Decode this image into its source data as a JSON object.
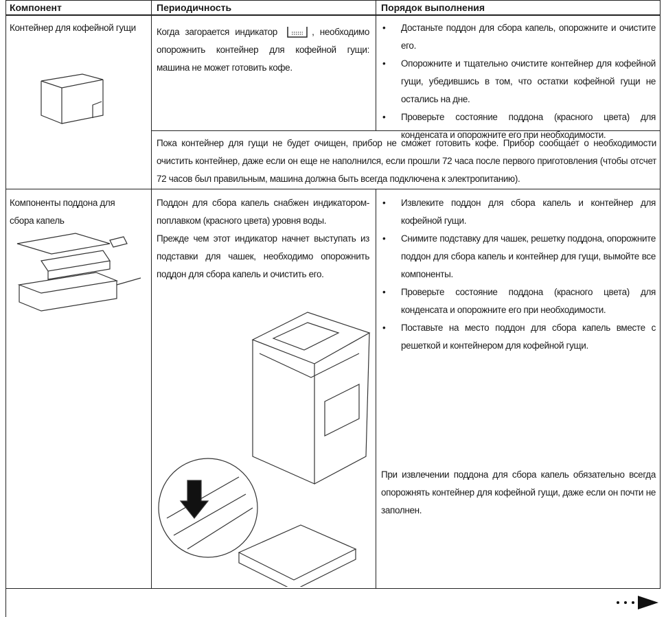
{
  "table": {
    "headers": [
      "Компонент",
      "Периодичность",
      "Порядок выполнения"
    ],
    "rows": [
      {
        "component": "Контейнер для кофейной гущи",
        "frequency": [
          "Когда загорается индикатор",
          ", необходимо опорожнить контейнер для кофейной гущи: машина не может готовить кофе."
        ],
        "steps": [
          "Достаньте поддон для сбора капель, опорожните и очистите его.",
          "Опорожните и тщательно очистите контейнер для кофейной гущи, убедившись в том, что остатки кофейной гущи не остались на дне.",
          "Проверьте состояние поддона (красного цвета) для конденсата и опорожните его при необходимости."
        ],
        "note": "Пока контейнер для гущи не будет очищен, прибор не сможет готовить кофе. Прибор сообщает о необходимости очистить контейнер, даже если он еще не наполнился, если прошли 72 часа после первого приготовления (чтобы отсчет 72 часов был правильным, машина должна быть всегда подключена к электропитанию)."
      },
      {
        "component": "Компоненты поддона для сбора капель",
        "frequency": [
          "Поддон для сбора капель снабжен индикатором-поплавком (красного цвета) уровня воды.",
          "Прежде чем этот индикатор начнет выступать из подставки для чашек, необходимо опорожнить поддон для сбора капель и очистить его."
        ],
        "steps": [
          "Извлеките поддон для сбора капель и контейнер для кофейной гущи.",
          "Снимите подставку для чашек, решетку поддона, опорожните поддон для сбора капель и контейнер для гущи, вымойте все компоненты.",
          "Проверьте состояние поддона (красного цвета) для конденсата и опорожните его при необходимости.",
          "Поставьте на место поддон для сбора капель вместе с решеткой и контейнером для кофейной гущи."
        ],
        "note": "При извлечении поддона для сбора капель обязательно всегда опорожнять контейнер для кофейной гущи, даже если он почти не заполнен."
      }
    ]
  }
}
